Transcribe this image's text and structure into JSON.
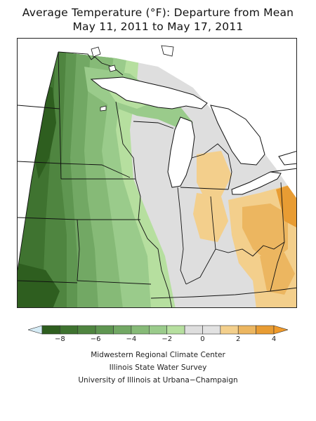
{
  "title": {
    "line1": "Average Temperature (°F): Departure from Mean",
    "line2": "May 11, 2011 to May 17, 2011"
  },
  "legend": {
    "bins": [
      {
        "min": null,
        "max": -9,
        "color": "#d6ecf6"
      },
      {
        "min": -9,
        "max": -8,
        "color": "#2e5e1f"
      },
      {
        "min": -8,
        "max": -7,
        "color": "#3f7330"
      },
      {
        "min": -7,
        "max": -6,
        "color": "#4f8540"
      },
      {
        "min": -6,
        "max": -5,
        "color": "#5f9651"
      },
      {
        "min": -5,
        "max": -4,
        "color": "#72a864"
      },
      {
        "min": -4,
        "max": -3,
        "color": "#86ba77"
      },
      {
        "min": -3,
        "max": -2,
        "color": "#9acb8b"
      },
      {
        "min": -2,
        "max": -1,
        "color": "#b6df9f"
      },
      {
        "min": -1,
        "max": 0,
        "color": "#dedede"
      },
      {
        "min": 0,
        "max": 1,
        "color": "#e2e2e2"
      },
      {
        "min": 1,
        "max": 2,
        "color": "#f3cf8c"
      },
      {
        "min": 2,
        "max": 3,
        "color": "#ecb660"
      },
      {
        "min": 3,
        "max": 4,
        "color": "#e89c33"
      },
      {
        "min": 4,
        "max": null,
        "color": "#f09a2a"
      }
    ],
    "tick_labels": [
      "−8",
      "−6",
      "−4",
      "−2",
      "0",
      "2",
      "4"
    ],
    "tick_values": [
      -8,
      -6,
      -4,
      -2,
      0,
      2,
      4
    ]
  },
  "credits": {
    "line1": "Midwestern Regional Climate Center",
    "line2": "Illinois State Water Survey",
    "line3": "University of Illinois at Urbana−Champaign"
  },
  "colors": {
    "water": "#ffffff",
    "boundary": "#111111",
    "frame": "#222222"
  }
}
